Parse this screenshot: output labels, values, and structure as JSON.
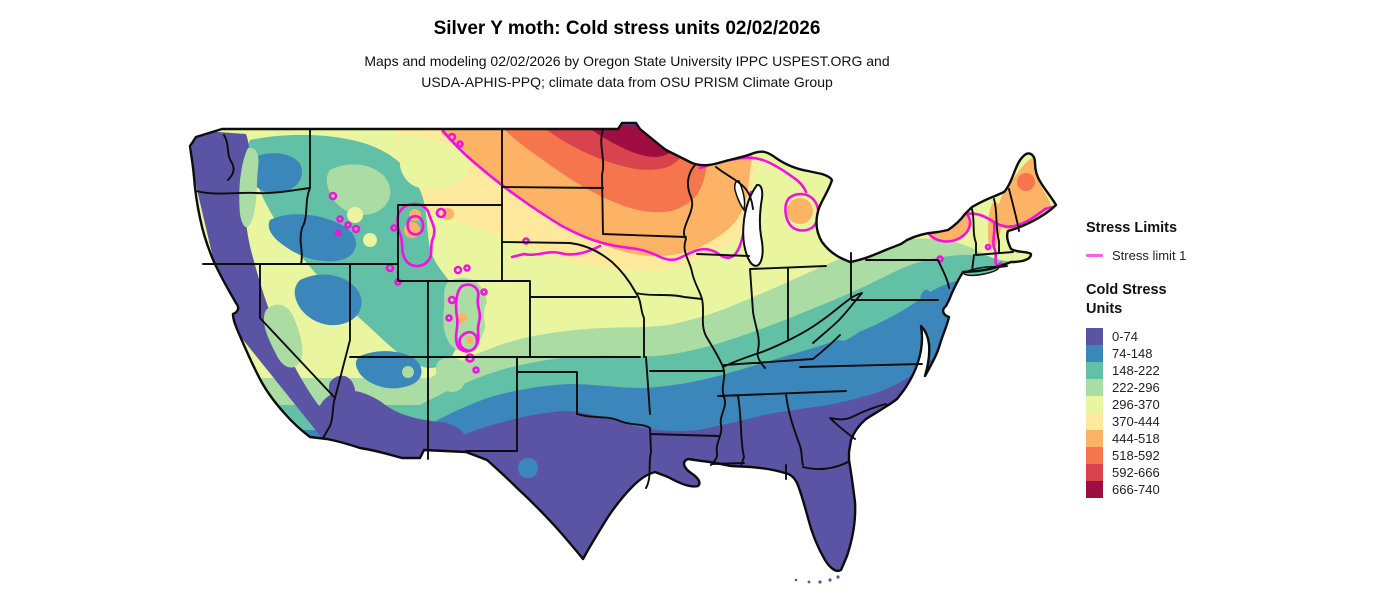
{
  "title": "Silver Y moth: Cold stress units 02/02/2026",
  "subtitle_line1": "Maps and modeling 02/02/2026 by Oregon State University IPPC USPEST.ORG and",
  "subtitle_line2": "USDA-APHIS-PPQ; climate data from OSU PRISM Climate Group",
  "legend": {
    "stress_limits": {
      "header": "Stress Limits",
      "items": [
        {
          "label": "Stress limit 1",
          "color": "#fb5cee"
        }
      ]
    },
    "cold_stress": {
      "header": "Cold Stress Units",
      "classes": [
        {
          "range": "0-74",
          "color": "#5b53a4"
        },
        {
          "range": "74-148",
          "color": "#3b87bb"
        },
        {
          "range": "148-222",
          "color": "#62c0a6"
        },
        {
          "range": "222-296",
          "color": "#abdca4"
        },
        {
          "range": "296-370",
          "color": "#eaf69f"
        },
        {
          "range": "370-444",
          "color": "#fee99d"
        },
        {
          "range": "444-518",
          "color": "#fdb365"
        },
        {
          "range": "518-592",
          "color": "#f5764d"
        },
        {
          "range": "592-666",
          "color": "#d8434e"
        },
        {
          "range": "666-740",
          "color": "#9e0e42"
        }
      ]
    }
  },
  "map": {
    "region": "contiguous United States",
    "kind": "gridded cold stress units raster with state borders",
    "stress_limit_line_color": "#f50fe0",
    "border_color": "#0d0d0d"
  }
}
